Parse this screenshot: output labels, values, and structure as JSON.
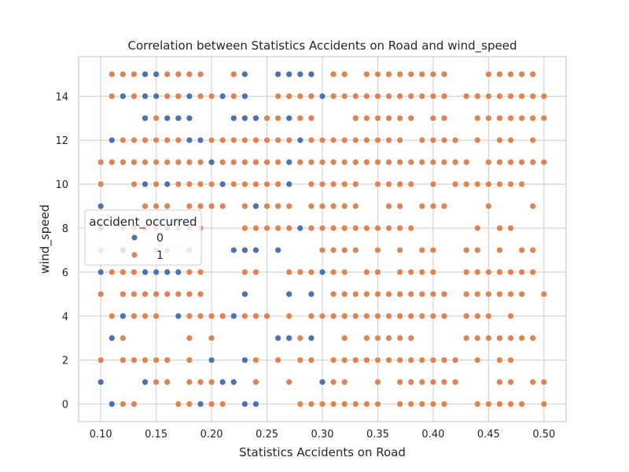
{
  "chart_data": {
    "type": "scatter",
    "title": "Correlation between Statistics Accidents on Road and wind_speed",
    "xlabel": "Statistics Accidents on Road",
    "ylabel": "wind_speed",
    "xlim": [
      0.08,
      0.52
    ],
    "ylim": [
      -0.8,
      15.8
    ],
    "x_ticks": [
      0.1,
      0.15,
      0.2,
      0.25,
      0.3,
      0.35,
      0.4,
      0.45,
      0.5
    ],
    "x_tick_labels": [
      "0.10",
      "0.15",
      "0.20",
      "0.25",
      "0.30",
      "0.35",
      "0.40",
      "0.45",
      "0.50"
    ],
    "y_ticks": [
      0,
      2,
      4,
      6,
      8,
      10,
      12,
      14
    ],
    "y_tick_labels": [
      "0",
      "2",
      "4",
      "6",
      "8",
      "10",
      "12",
      "14"
    ],
    "grid": true,
    "legend": {
      "title": "accident_occurred",
      "placement": "center-left",
      "entries": [
        {
          "label": "0",
          "color": "#4c72b0"
        },
        {
          "label": "1",
          "color": "#dd8452"
        }
      ]
    },
    "series": [
      {
        "name": "0",
        "color": "#4c72b0",
        "points": [
          [
            0.14,
            15
          ],
          [
            0.15,
            15
          ],
          [
            0.23,
            15
          ],
          [
            0.26,
            15
          ],
          [
            0.27,
            15
          ],
          [
            0.28,
            15
          ],
          [
            0.29,
            15
          ],
          [
            0.12,
            14
          ],
          [
            0.14,
            14
          ],
          [
            0.15,
            14
          ],
          [
            0.18,
            14
          ],
          [
            0.21,
            14
          ],
          [
            0.23,
            14
          ],
          [
            0.3,
            14
          ],
          [
            0.14,
            13
          ],
          [
            0.16,
            13
          ],
          [
            0.17,
            13
          ],
          [
            0.18,
            13
          ],
          [
            0.22,
            13
          ],
          [
            0.23,
            13
          ],
          [
            0.24,
            13
          ],
          [
            0.27,
            13
          ],
          [
            0.11,
            12
          ],
          [
            0.18,
            12
          ],
          [
            0.19,
            12
          ],
          [
            0.28,
            12
          ],
          [
            0.2,
            11
          ],
          [
            0.27,
            11
          ],
          [
            0.14,
            10
          ],
          [
            0.16,
            10
          ],
          [
            0.21,
            10
          ],
          [
            0.27,
            10
          ],
          [
            0.1,
            9
          ],
          [
            0.24,
            9
          ],
          [
            0.1,
            8
          ],
          [
            0.16,
            8
          ],
          [
            0.28,
            8
          ],
          [
            0.12,
            7
          ],
          [
            0.22,
            7
          ],
          [
            0.23,
            7
          ],
          [
            0.24,
            7
          ],
          [
            0.26,
            7
          ],
          [
            0.1,
            6
          ],
          [
            0.14,
            6
          ],
          [
            0.15,
            6
          ],
          [
            0.16,
            6
          ],
          [
            0.17,
            6
          ],
          [
            0.3,
            6
          ],
          [
            0.23,
            5
          ],
          [
            0.27,
            5
          ],
          [
            0.29,
            5
          ],
          [
            0.12,
            4
          ],
          [
            0.17,
            4
          ],
          [
            0.22,
            4
          ],
          [
            0.11,
            3
          ],
          [
            0.26,
            3
          ],
          [
            0.27,
            3
          ],
          [
            0.29,
            3
          ],
          [
            0.2,
            2
          ],
          [
            0.23,
            2
          ],
          [
            0.1,
            1
          ],
          [
            0.14,
            1
          ],
          [
            0.21,
            1
          ],
          [
            0.22,
            1
          ],
          [
            0.3,
            1
          ],
          [
            0.11,
            0
          ],
          [
            0.19,
            0
          ],
          [
            0.23,
            0
          ],
          [
            0.24,
            0
          ]
        ]
      },
      {
        "name": "1",
        "color": "#dd8452",
        "grid_x": [
          0.1,
          0.11,
          0.12,
          0.13,
          0.14,
          0.15,
          0.16,
          0.17,
          0.18,
          0.19,
          0.2,
          0.21,
          0.22,
          0.23,
          0.24,
          0.25,
          0.26,
          0.27,
          0.28,
          0.29,
          0.3,
          0.31,
          0.32,
          0.33,
          0.34,
          0.35,
          0.36,
          0.37,
          0.38,
          0.39,
          0.4,
          0.41,
          0.42,
          0.43,
          0.44,
          0.45,
          0.46,
          0.47,
          0.48,
          0.49,
          0.5
        ],
        "grid_y": [
          0,
          1,
          2,
          3,
          4,
          5,
          6,
          7,
          8,
          9,
          10,
          11,
          12,
          13,
          14,
          15
        ],
        "gaps": {
          "15": [
            0.1,
            0.2,
            0.21,
            0.24,
            0.25,
            0.3,
            0.33,
            0.42,
            0.43,
            0.44,
            0.5
          ],
          "14": [
            0.1,
            0.24,
            0.25,
            0.42
          ],
          "13": [
            0.1,
            0.11,
            0.12,
            0.13,
            0.19,
            0.2,
            0.21,
            0.3,
            0.31,
            0.32,
            0.39,
            0.42,
            0.43
          ],
          "12": [
            0.1,
            0.28,
            0.38,
            0.43,
            0.45,
            0.48,
            0.5
          ],
          "11": [
            0.44
          ],
          "10": [
            0.11,
            0.12,
            0.28,
            0.34,
            0.39,
            0.41,
            0.49,
            0.5
          ],
          "9": [
            0.11,
            0.12,
            0.13,
            0.17,
            0.22,
            0.28,
            0.34,
            0.35,
            0.38,
            0.42,
            0.43,
            0.44,
            0.46,
            0.47,
            0.48,
            0.5
          ],
          "8": [
            0.11,
            0.2,
            0.21,
            0.22,
            0.39,
            0.4,
            0.41,
            0.42,
            0.43,
            0.45,
            0.48,
            0.49,
            0.5
          ],
          "7": [
            0.11,
            0.13,
            0.14,
            0.17,
            0.19,
            0.2,
            0.21,
            0.25,
            0.27,
            0.28,
            0.29,
            0.34,
            0.36,
            0.38,
            0.41,
            0.42,
            0.45,
            0.47,
            0.5
          ],
          "6": [
            0.2,
            0.21,
            0.22,
            0.25,
            0.26,
            0.33,
            0.36,
            0.41,
            0.42,
            0.5
          ],
          "5": [
            0.11,
            0.2,
            0.21,
            0.22,
            0.24,
            0.25,
            0.26,
            0.28,
            0.3,
            0.42,
            0.49
          ],
          "4": [
            0.1,
            0.16,
            0.26,
            0.28,
            0.42,
            0.46,
            0.48,
            0.49,
            0.5
          ],
          "3": [
            0.1,
            0.13,
            0.14,
            0.15,
            0.16,
            0.17,
            0.19,
            0.21,
            0.22,
            0.23,
            0.24,
            0.25,
            0.3,
            0.31,
            0.33,
            0.39,
            0.4,
            0.41,
            0.42,
            0.5
          ],
          "2": [
            0.11,
            0.17,
            0.19,
            0.21,
            0.22,
            0.25,
            0.27,
            0.3,
            0.43,
            0.45,
            0.48,
            0.49,
            0.5
          ],
          "1": [
            0.11,
            0.12,
            0.13,
            0.17,
            0.23,
            0.25,
            0.26,
            0.28,
            0.29,
            0.33,
            0.34,
            0.36,
            0.43,
            0.44,
            0.45,
            0.48
          ],
          "0": [
            0.1,
            0.14,
            0.15,
            0.16,
            0.22,
            0.25,
            0.26,
            0.27,
            0.36,
            0.42,
            0.43,
            0.49
          ]
        }
      }
    ]
  }
}
